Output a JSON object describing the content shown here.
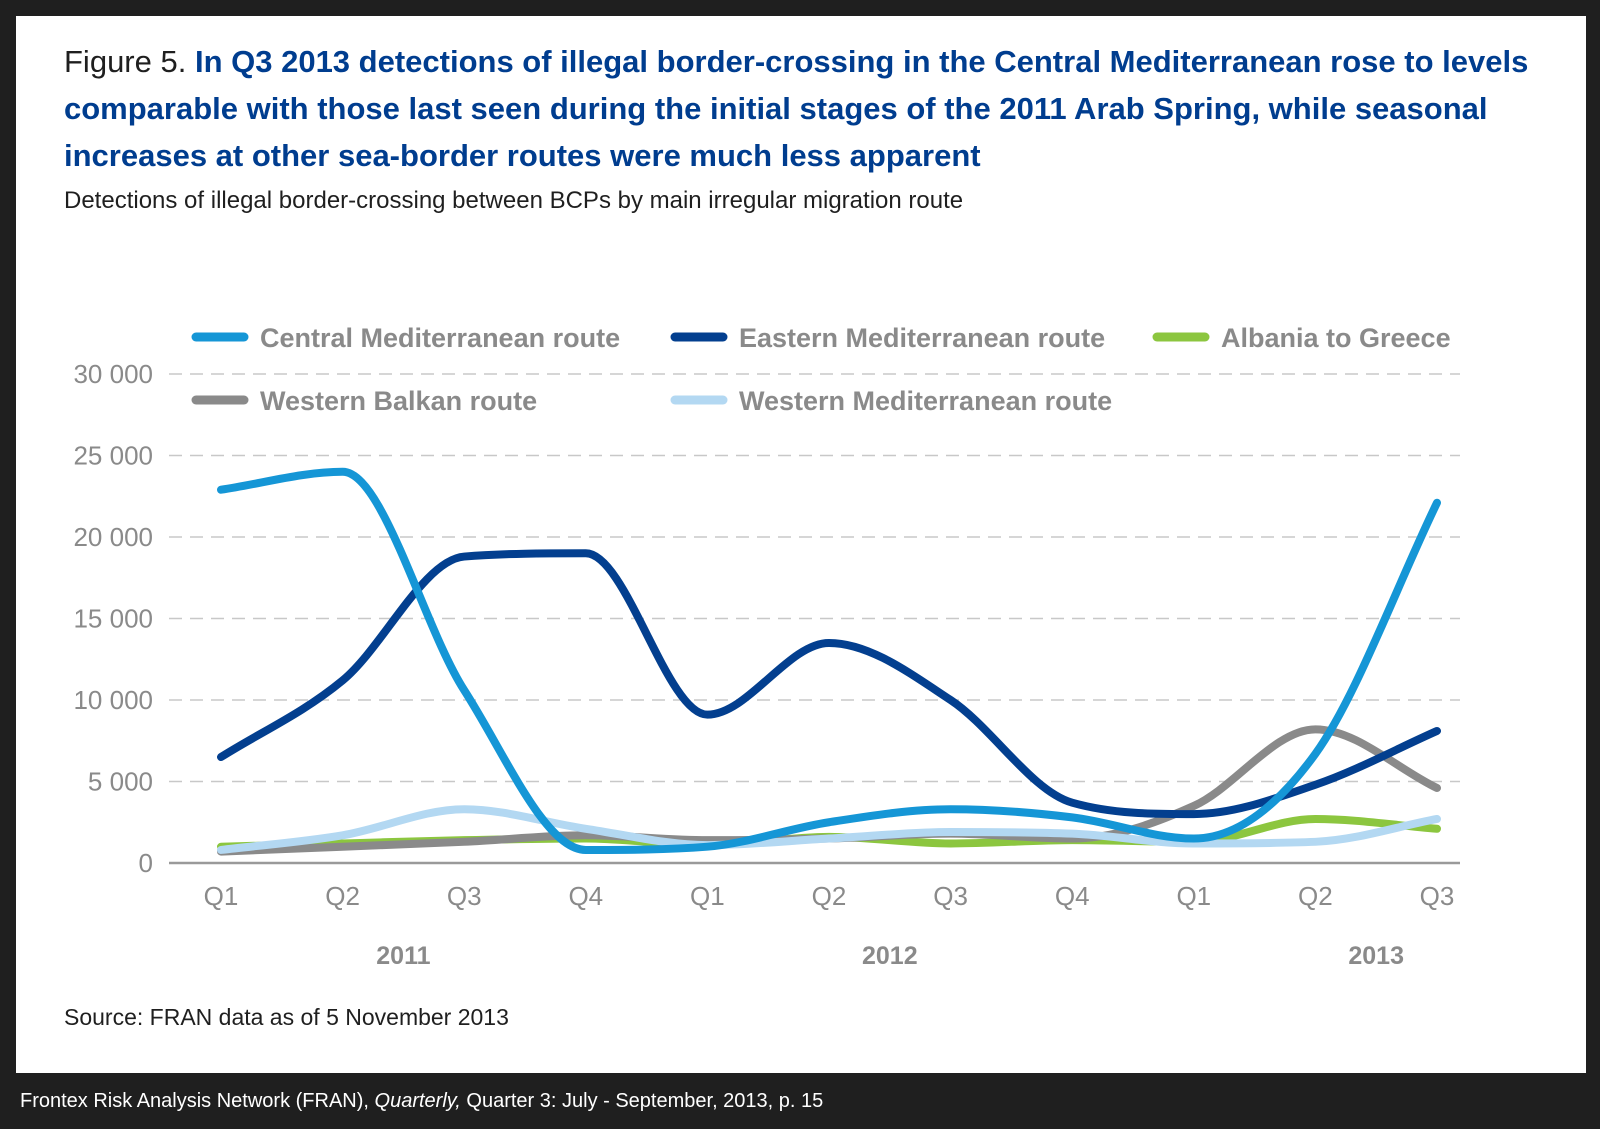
{
  "figure": {
    "label": "Figure 5. ",
    "title": "In Q3 2013 detections of illegal border-crossing in the Central Mediterranean rose to levels comparable with those last seen during the initial stages of the 2011 Arab Spring, while seasonal increases at other sea-border routes were much less apparent",
    "subtitle": "Detections of illegal border-crossing between BCPs by main irregular migration route",
    "source": "Source: FRAN data as of 5 November 2013"
  },
  "citation": {
    "before": "Frontex Risk Analysis Network (FRAN), ",
    "italic": "Quarterly,",
    "after": " Quarter 3: July - September, 2013, p. 15"
  },
  "chart_data": {
    "type": "line",
    "title": "",
    "xlabel": "",
    "ylabel": "",
    "ylim": [
      0,
      30000
    ],
    "yticks": [
      0,
      5000,
      10000,
      15000,
      20000,
      25000,
      30000
    ],
    "ytick_labels": [
      "0",
      "5 000",
      "10 000",
      "15 000",
      "20 000",
      "25 000",
      "30 000"
    ],
    "grid": "horizontal dashed",
    "legend_position": "top",
    "categories": [
      "Q1",
      "Q2",
      "Q3",
      "Q4",
      "Q1",
      "Q2",
      "Q3",
      "Q4",
      "Q1",
      "Q2",
      "Q3"
    ],
    "year_groups": [
      {
        "label": "2011",
        "quarters": 4
      },
      {
        "label": "2012",
        "quarters": 4
      },
      {
        "label": "2013",
        "quarters": 3
      }
    ],
    "series": [
      {
        "name": "Central Mediterranean route",
        "color": "#1596d6",
        "values": [
          22900,
          24000,
          10600,
          800,
          1000,
          2500,
          3300,
          2800,
          1500,
          6700,
          22100
        ]
      },
      {
        "name": "Eastern Mediterranean route",
        "color": "#033f8f",
        "values": [
          6500,
          11200,
          18800,
          19000,
          9100,
          13500,
          10000,
          3700,
          3000,
          4800,
          8100
        ]
      },
      {
        "name": "Albania to Greece",
        "color": "#8cc63f",
        "values": [
          1000,
          1200,
          1400,
          1500,
          1100,
          1600,
          1200,
          1400,
          1300,
          2700,
          2100
        ]
      },
      {
        "name": "Western Balkan route",
        "color": "#8a8a8a",
        "values": [
          700,
          1000,
          1300,
          1700,
          1400,
          1500,
          1800,
          1500,
          3500,
          8200,
          4600
        ]
      },
      {
        "name": "Western Mediterranean route",
        "color": "#b3d8f2",
        "values": [
          800,
          1700,
          3300,
          2100,
          1100,
          1500,
          1900,
          1800,
          1200,
          1300,
          2700
        ]
      }
    ]
  }
}
